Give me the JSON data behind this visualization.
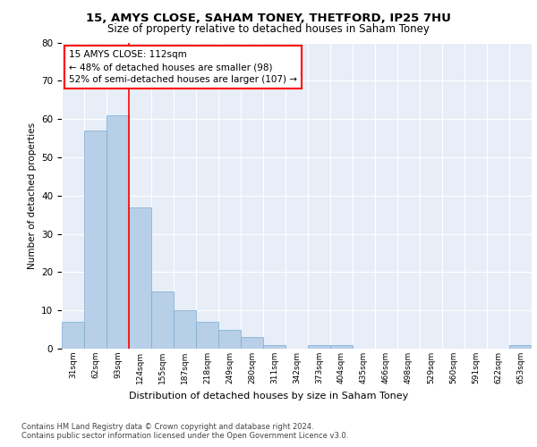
{
  "title1": "15, AMYS CLOSE, SAHAM TONEY, THETFORD, IP25 7HU",
  "title2": "Size of property relative to detached houses in Saham Toney",
  "xlabel": "Distribution of detached houses by size in Saham Toney",
  "ylabel": "Number of detached properties",
  "bins": [
    "31sqm",
    "62sqm",
    "93sqm",
    "124sqm",
    "155sqm",
    "187sqm",
    "218sqm",
    "249sqm",
    "280sqm",
    "311sqm",
    "342sqm",
    "373sqm",
    "404sqm",
    "435sqm",
    "466sqm",
    "498sqm",
    "529sqm",
    "560sqm",
    "591sqm",
    "622sqm",
    "653sqm"
  ],
  "values": [
    7,
    57,
    61,
    37,
    15,
    10,
    7,
    5,
    3,
    1,
    0,
    1,
    1,
    0,
    0,
    0,
    0,
    0,
    0,
    0,
    1
  ],
  "bar_color": "#b8cfe8",
  "bar_edge_color": "#7aaad0",
  "annotation_text": "15 AMYS CLOSE: 112sqm\n← 48% of detached houses are smaller (98)\n52% of semi-detached houses are larger (107) →",
  "annotation_box_color": "white",
  "annotation_box_edge_color": "red",
  "vline_x": 2.5,
  "vline_color": "red",
  "ylim": [
    0,
    80
  ],
  "yticks": [
    0,
    10,
    20,
    30,
    40,
    50,
    60,
    70,
    80
  ],
  "bg_color": "#e8eef8",
  "footer1": "Contains HM Land Registry data © Crown copyright and database right 2024.",
  "footer2": "Contains public sector information licensed under the Open Government Licence v3.0."
}
